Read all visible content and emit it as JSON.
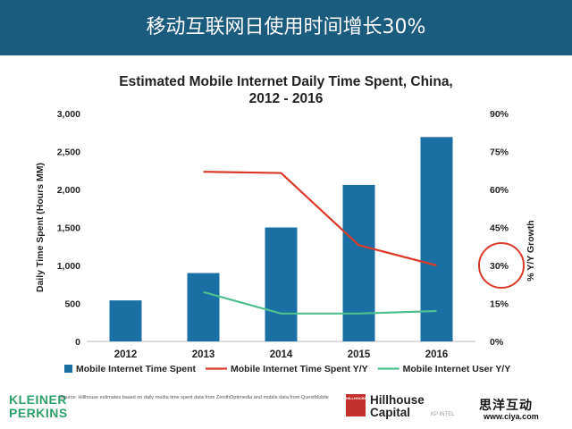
{
  "header": {
    "title": "移动互联网日使用时间增长30%"
  },
  "chart_data": {
    "type": "bar",
    "title": "Estimated Mobile Internet Daily Time Spent, China, 2012 - 2016",
    "title_lines": [
      "Estimated Mobile Internet Daily Time Spent, China,",
      "2012 - 2016"
    ],
    "categories": [
      "2012",
      "2013",
      "2014",
      "2015",
      "2016"
    ],
    "ylabel": "Daily Time Spent (Hours MM)",
    "ylabel2": "% Y/Y Growth",
    "ylim": [
      0,
      3000
    ],
    "ylim2": [
      0,
      90
    ],
    "yticks": [
      "0",
      "500",
      "1,000",
      "1,500",
      "2,000",
      "2,500",
      "3,000"
    ],
    "yticks2": [
      "0%",
      "15%",
      "30%",
      "45%",
      "60%",
      "75%",
      "90%"
    ],
    "series": [
      {
        "name": "Mobile Internet Time Spent",
        "type": "bar",
        "axis": "left",
        "color": "#1a6fa3",
        "values": [
          540,
          900,
          1500,
          2060,
          2690
        ]
      },
      {
        "name": "Mobile Internet Time Spent Y/Y",
        "type": "line",
        "axis": "right",
        "color": "#d93a2b",
        "values": [
          null,
          67,
          66.5,
          38,
          30
        ]
      },
      {
        "name": "Mobile Internet User Y/Y",
        "type": "line",
        "axis": "right",
        "color": "#4dbf8f",
        "values": [
          null,
          19.5,
          11,
          11,
          12
        ]
      }
    ],
    "annotation": {
      "type": "circle",
      "target_tick": "30%",
      "color": "#d93a2b"
    },
    "legend_position": "bottom"
  },
  "footer": {
    "source": "Source: Hillhouse estimates based on daily media time spent data from ZenithOptimedia and mobile data from QuestMobile",
    "kp_logo": [
      "KLEINER",
      "PERKINS"
    ],
    "hillhouse_mark": "HILLHOUSE",
    "hillhouse": [
      "Hillhouse",
      "Capital"
    ],
    "kp_intel": "KP INTEL",
    "watermark_cn": "思洋互动",
    "watermark_url": "www.ciya.com"
  }
}
